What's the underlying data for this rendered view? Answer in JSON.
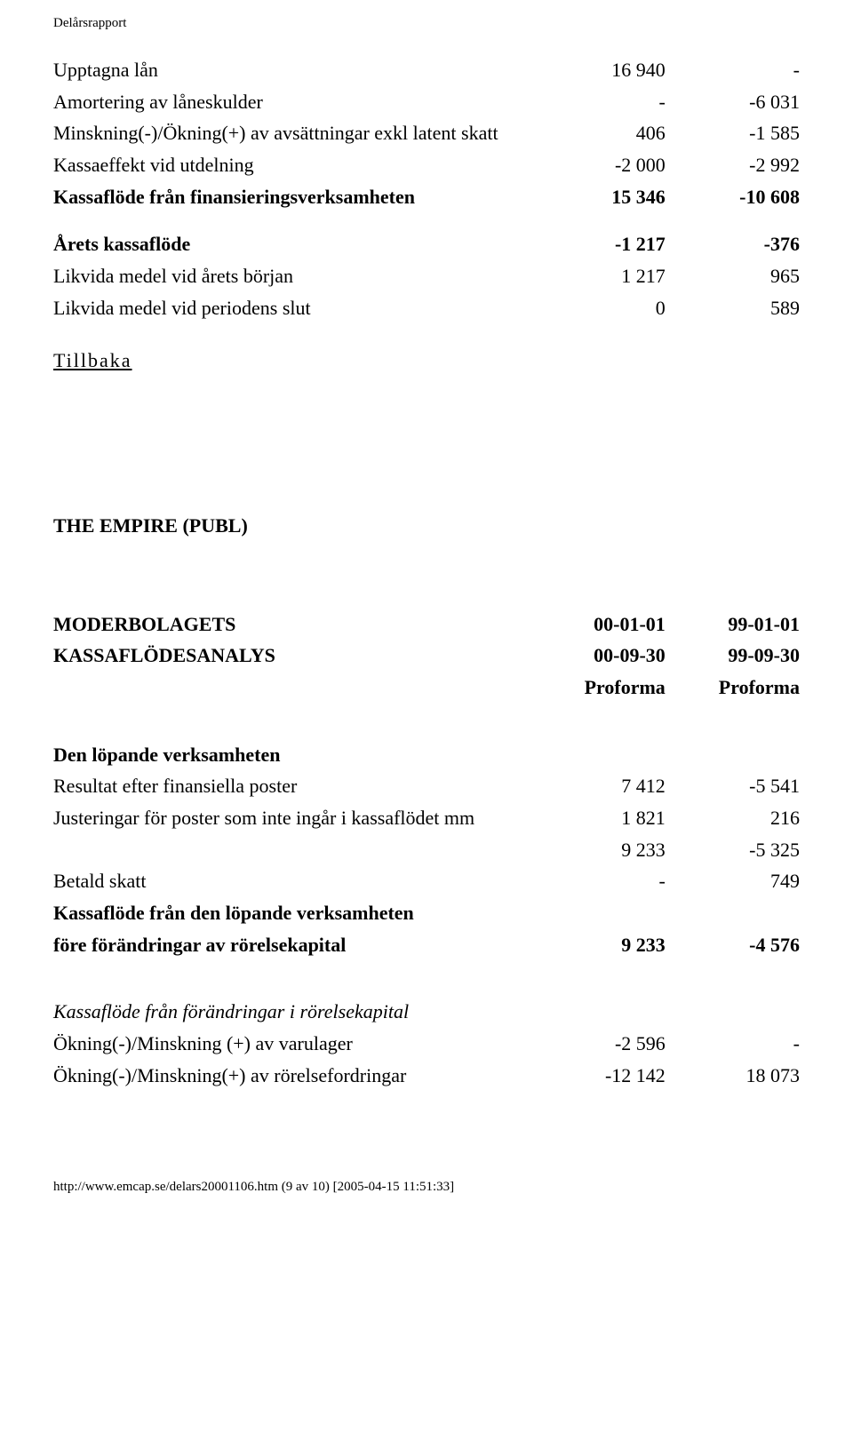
{
  "doc_header": "Delårsrapport",
  "top_rows": [
    {
      "label": "Upptagna lån",
      "c1": "16 940",
      "c2": "-",
      "bold": false
    },
    {
      "label": "Amortering av låneskulder",
      "c1": "-",
      "c2": "-6 031",
      "bold": false
    },
    {
      "label": "Minskning(-)/Ökning(+) av avsättningar exkl latent skatt",
      "c1": "406",
      "c2": "-1 585",
      "bold": false
    },
    {
      "label": "Kassaeffekt vid utdelning",
      "c1": "-2 000",
      "c2": "-2 992",
      "bold": false
    },
    {
      "label": "Kassaflöde från finansieringsverksamheten",
      "c1": "15 346",
      "c2": "-10 608",
      "bold": true
    }
  ],
  "top_rows2": [
    {
      "label": "Årets kassaflöde",
      "c1": "-1 217",
      "c2": "-376",
      "bold": true
    },
    {
      "label": "Likvida medel vid årets början",
      "c1": "1 217",
      "c2": "965",
      "bold": false
    },
    {
      "label": "Likvida medel vid periodens slut",
      "c1": "0",
      "c2": "589",
      "bold": false
    }
  ],
  "back_link": "Tillbaka",
  "company": "THE EMPIRE (PUBL)",
  "header_rows": [
    {
      "l1": "MODERBOLAGETS",
      "c1": "00-01-01",
      "c2": "99-01-01"
    },
    {
      "l1": "KASSAFLÖDESANALYS",
      "c1": "00-09-30",
      "c2": "99-09-30"
    },
    {
      "l1": "",
      "c1": "Proforma",
      "c2": "Proforma"
    }
  ],
  "section2_title": "Den löpande verksamheten",
  "section2_rows": [
    {
      "label": "Resultat efter finansiella poster",
      "c1": "7 412",
      "c2": "-5 541",
      "bold": false
    },
    {
      "label": "Justeringar för poster som inte ingår i kassaflödet mm",
      "c1": "1 821",
      "c2": "216",
      "bold": false
    },
    {
      "label": "",
      "c1": "9 233",
      "c2": "-5 325",
      "bold": false
    },
    {
      "label": "Betald skatt",
      "c1": "-",
      "c2": "749",
      "bold": false
    }
  ],
  "section2_bold_heading": "Kassaflöde från den löpande verksamheten",
  "section2_bold_row": {
    "label": "före förändringar av rörelsekapital",
    "c1": "9 233",
    "c2": "-4 576"
  },
  "section3_title": "Kassaflöde från förändringar i rörelsekapital",
  "section3_rows": [
    {
      "label": "Ökning(-)/Minskning (+) av varulager",
      "c1": "-2 596",
      "c2": "-",
      "bold": false
    },
    {
      "label": "Ökning(-)/Minskning(+) av rörelsefordringar",
      "c1": "-12 142",
      "c2": "18 073",
      "bold": false
    }
  ],
  "footer": "http://www.emcap.se/delars20001106.htm (9 av 10) [2005-04-15 11:51:33]"
}
